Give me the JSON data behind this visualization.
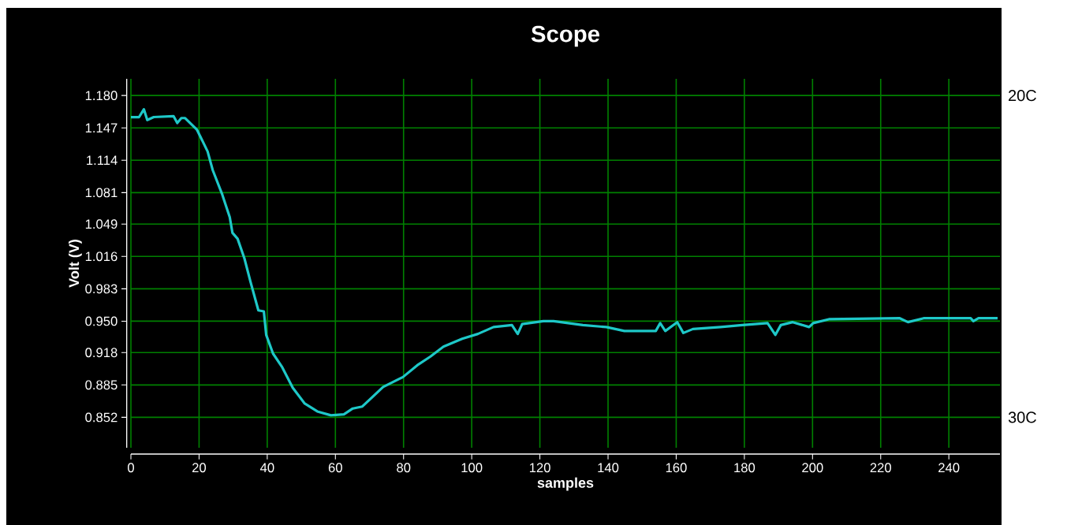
{
  "chart_data": {
    "type": "line",
    "title": "Scope",
    "xlabel": "samples",
    "ylabel": "Volt (V)",
    "x": [
      0,
      2.4,
      3.8,
      4.8,
      6.7,
      12.5,
      13.6,
      14.8,
      15.9,
      19.4,
      22.5,
      24,
      26.7,
      29,
      29.8,
      31.3,
      33.3,
      35.1,
      37.4,
      39,
      39.7,
      41.7,
      44.4,
      47.5,
      51,
      54.7,
      58.7,
      62.5,
      65.1,
      67.9,
      74,
      79.8,
      84,
      87.9,
      91.7,
      97.2,
      101.8,
      106.4,
      111.8,
      113.5,
      114.8,
      121,
      124,
      132.6,
      139.5,
      144.8,
      154,
      155.3,
      156.8,
      160.3,
      162.1,
      164.9,
      173,
      179.4,
      186.8,
      189.1,
      190.7,
      194.2,
      199,
      200.2,
      204.8,
      225.6,
      228,
      232.6,
      246.4,
      247.2,
      248.7,
      254.3
    ],
    "series": [
      {
        "color": "#1ec8c8",
        "values": [
          1.158,
          1.158,
          1.166,
          1.155,
          1.158,
          1.159,
          1.152,
          1.157,
          1.157,
          1.145,
          1.123,
          1.104,
          1.08,
          1.056,
          1.04,
          1.034,
          1.014,
          0.99,
          0.961,
          0.96,
          0.936,
          0.917,
          0.903,
          0.882,
          0.866,
          0.858,
          0.854,
          0.855,
          0.861,
          0.863,
          0.883,
          0.893,
          0.905,
          0.914,
          0.924,
          0.932,
          0.937,
          0.944,
          0.946,
          0.937,
          0.947,
          0.95,
          0.95,
          0.946,
          0.944,
          0.94,
          0.94,
          0.948,
          0.94,
          0.949,
          0.938,
          0.942,
          0.944,
          0.946,
          0.948,
          0.936,
          0.946,
          0.949,
          0.944,
          0.948,
          0.952,
          0.953,
          0.949,
          0.953,
          0.953,
          0.95,
          0.953,
          0.953
        ]
      }
    ],
    "xlim": [
      0,
      255
    ],
    "xticks": [
      0,
      20,
      40,
      60,
      80,
      100,
      120,
      140,
      160,
      180,
      200,
      220,
      240
    ],
    "ylim": [
      0.821,
      1.197
    ],
    "yticks": [
      {
        "value": 1.18,
        "label": "1.180"
      },
      {
        "value": 1.147,
        "label": "1.147"
      },
      {
        "value": 1.114,
        "label": "1.114"
      },
      {
        "value": 1.081,
        "label": "1.081"
      },
      {
        "value": 1.049,
        "label": "1.049"
      },
      {
        "value": 1.016,
        "label": "1.016"
      },
      {
        "value": 0.983,
        "label": "0.983"
      },
      {
        "value": 0.95,
        "label": "0.950"
      },
      {
        "value": 0.918,
        "label": "0.918"
      },
      {
        "value": 0.885,
        "label": "0.885"
      },
      {
        "value": 0.852,
        "label": "0.852"
      }
    ],
    "annotations": [
      "20C",
      "30C"
    ],
    "grid": true,
    "marker": "none",
    "line_style": "solid"
  }
}
